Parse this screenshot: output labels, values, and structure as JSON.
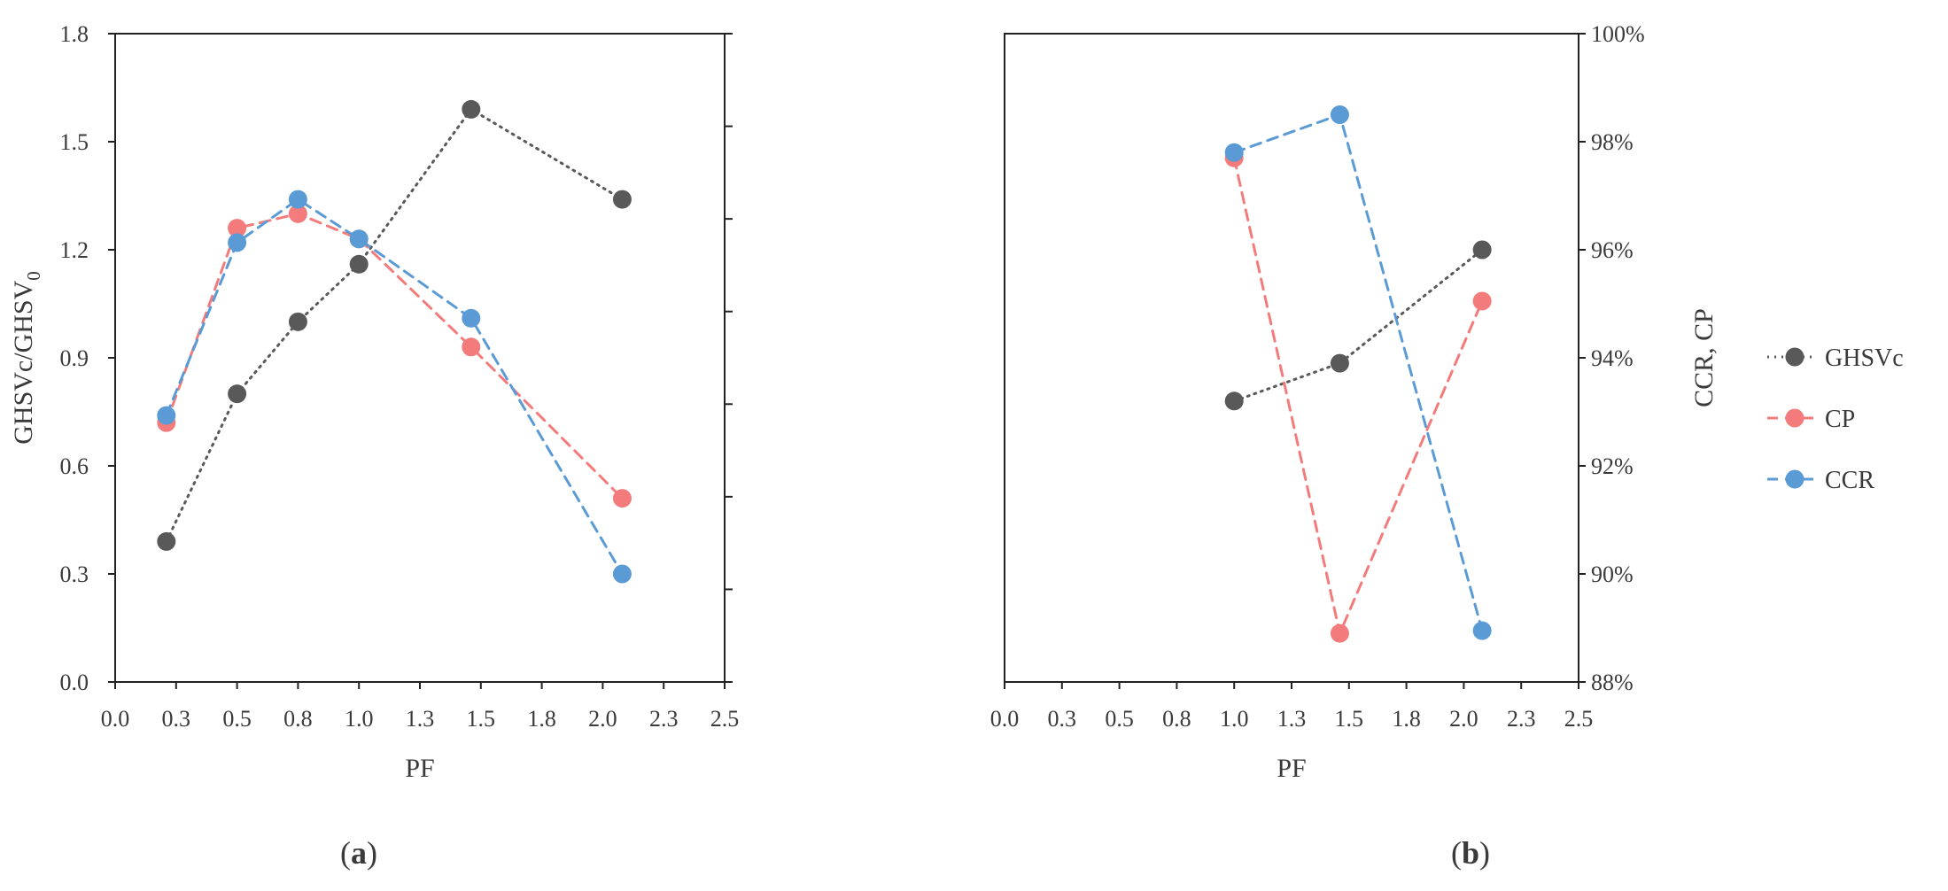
{
  "chart_data": [
    {
      "type": "line",
      "panel_label": "a",
      "xlabel": "PF",
      "ylabel": "GHSVc/GHSV",
      "ylabel_subscript": "0",
      "x_ticks": [
        "0.0",
        "0.3",
        "0.5",
        "0.8",
        "1.0",
        "1.3",
        "1.5",
        "1.8",
        "2.0",
        "2.3",
        "2.5"
      ],
      "y_ticks": [
        "0.0",
        "0.3",
        "0.6",
        "0.9",
        "1.2",
        "1.5",
        "1.8"
      ],
      "xlim": [
        0,
        2.5
      ],
      "ylim": [
        0,
        1.8
      ],
      "secondary_y_axis": "tick marks only, no labels",
      "grid": false,
      "series": [
        {
          "name": "GHSVc",
          "color": "#595959",
          "dash": "dotted",
          "x": [
            0.21,
            0.5,
            0.75,
            1.0,
            1.46,
            2.08
          ],
          "y": [
            0.39,
            0.8,
            1.0,
            1.16,
            1.59,
            1.34
          ]
        },
        {
          "name": "CP",
          "color": "#F47B7B",
          "dash": "dashed",
          "x": [
            0.21,
            0.5,
            0.75,
            1.0,
            1.46,
            2.08
          ],
          "y": [
            0.72,
            1.26,
            1.3,
            1.23,
            0.93,
            0.51
          ]
        },
        {
          "name": "CCR",
          "color": "#5B9BD5",
          "dash": "dashed",
          "x": [
            0.21,
            0.5,
            0.75,
            1.0,
            1.46,
            2.08
          ],
          "y": [
            0.74,
            1.22,
            1.34,
            1.23,
            1.01,
            0.3
          ]
        }
      ]
    },
    {
      "type": "line",
      "panel_label": "b",
      "xlabel": "PF",
      "ylabel": "CCR, CP",
      "x_ticks": [
        "0.0",
        "0.3",
        "0.5",
        "0.8",
        "1.0",
        "1.3",
        "1.5",
        "1.8",
        "2.0",
        "2.3",
        "2.5"
      ],
      "y_ticks": [
        "88%",
        "90%",
        "92%",
        "94%",
        "96%",
        "98%",
        "100%"
      ],
      "xlim": [
        0,
        2.5
      ],
      "ylim": [
        88,
        100
      ],
      "y_axis_side": "right",
      "grid": false,
      "legend_position": "right",
      "series": [
        {
          "name": "GHSVc",
          "color": "#595959",
          "dash": "dotted",
          "x": [
            1.0,
            1.46,
            2.08
          ],
          "y": [
            93.2,
            93.9,
            96.0
          ]
        },
        {
          "name": "CP",
          "color": "#F47B7B",
          "dash": "dashed",
          "x": [
            1.0,
            1.46,
            2.08
          ],
          "y": [
            97.7,
            88.9,
            95.05
          ]
        },
        {
          "name": "CCR",
          "color": "#5B9BD5",
          "dash": "dashed",
          "x": [
            1.0,
            1.46,
            2.08
          ],
          "y": [
            97.8,
            98.5,
            88.95
          ]
        }
      ]
    }
  ],
  "legend": [
    {
      "label": "GHSVc",
      "color": "#595959",
      "dash": "dotted"
    },
    {
      "label": "CP",
      "color": "#F47B7B",
      "dash": "dashed"
    },
    {
      "label": "CCR",
      "color": "#5B9BD5",
      "dash": "dashed"
    }
  ]
}
